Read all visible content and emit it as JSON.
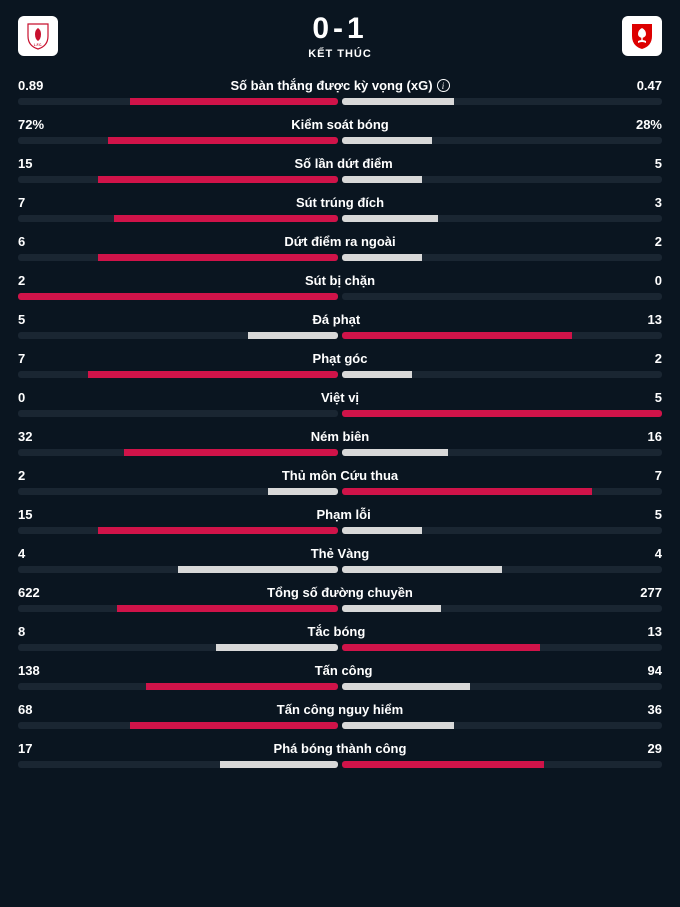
{
  "colors": {
    "background": "#0a1520",
    "track": "#1a2632",
    "highlight": "#d01349",
    "dim": "#d8d8d8",
    "text": "#ffffff",
    "crestHome": "#c8102e",
    "crestAway": "#dd0000"
  },
  "header": {
    "score": "0-1",
    "status": "KẾT THÚC"
  },
  "stats": [
    {
      "label": "Số bàn thắng được kỳ vọng (xG)",
      "info": true,
      "home": "0.89",
      "away": "0.47",
      "homePct": 65,
      "awayPct": 35,
      "highlight": "home"
    },
    {
      "label": "Kiểm soát bóng",
      "home": "72%",
      "away": "28%",
      "homePct": 72,
      "awayPct": 28,
      "highlight": "home"
    },
    {
      "label": "Số lần dứt điểm",
      "home": "15",
      "away": "5",
      "homePct": 75,
      "awayPct": 25,
      "highlight": "home"
    },
    {
      "label": "Sút trúng đích",
      "home": "7",
      "away": "3",
      "homePct": 70,
      "awayPct": 30,
      "highlight": "home"
    },
    {
      "label": "Dứt điểm ra ngoài",
      "home": "6",
      "away": "2",
      "homePct": 75,
      "awayPct": 25,
      "highlight": "home"
    },
    {
      "label": "Sút bị chặn",
      "home": "2",
      "away": "0",
      "homePct": 100,
      "awayPct": 0,
      "highlight": "home"
    },
    {
      "label": "Đá phạt",
      "home": "5",
      "away": "13",
      "homePct": 28,
      "awayPct": 72,
      "highlight": "away"
    },
    {
      "label": "Phạt góc",
      "home": "7",
      "away": "2",
      "homePct": 78,
      "awayPct": 22,
      "highlight": "home"
    },
    {
      "label": "Việt vị",
      "home": "0",
      "away": "5",
      "homePct": 0,
      "awayPct": 100,
      "highlight": "away"
    },
    {
      "label": "Ném biên",
      "home": "32",
      "away": "16",
      "homePct": 67,
      "awayPct": 33,
      "highlight": "home"
    },
    {
      "label": "Thủ môn Cứu thua",
      "home": "2",
      "away": "7",
      "homePct": 22,
      "awayPct": 78,
      "highlight": "away"
    },
    {
      "label": "Phạm lỗi",
      "home": "15",
      "away": "5",
      "homePct": 75,
      "awayPct": 25,
      "highlight": "home"
    },
    {
      "label": "Thẻ Vàng",
      "home": "4",
      "away": "4",
      "homePct": 50,
      "awayPct": 50,
      "highlight": "none"
    },
    {
      "label": "Tổng số đường chuyền",
      "home": "622",
      "away": "277",
      "homePct": 69,
      "awayPct": 31,
      "highlight": "home"
    },
    {
      "label": "Tắc bóng",
      "home": "8",
      "away": "13",
      "homePct": 38,
      "awayPct": 62,
      "highlight": "away"
    },
    {
      "label": "Tấn công",
      "home": "138",
      "away": "94",
      "homePct": 60,
      "awayPct": 40,
      "highlight": "home"
    },
    {
      "label": "Tấn công nguy hiểm",
      "home": "68",
      "away": "36",
      "homePct": 65,
      "awayPct": 35,
      "highlight": "home"
    },
    {
      "label": "Phá bóng thành công",
      "home": "17",
      "away": "29",
      "homePct": 37,
      "awayPct": 63,
      "highlight": "away"
    }
  ]
}
